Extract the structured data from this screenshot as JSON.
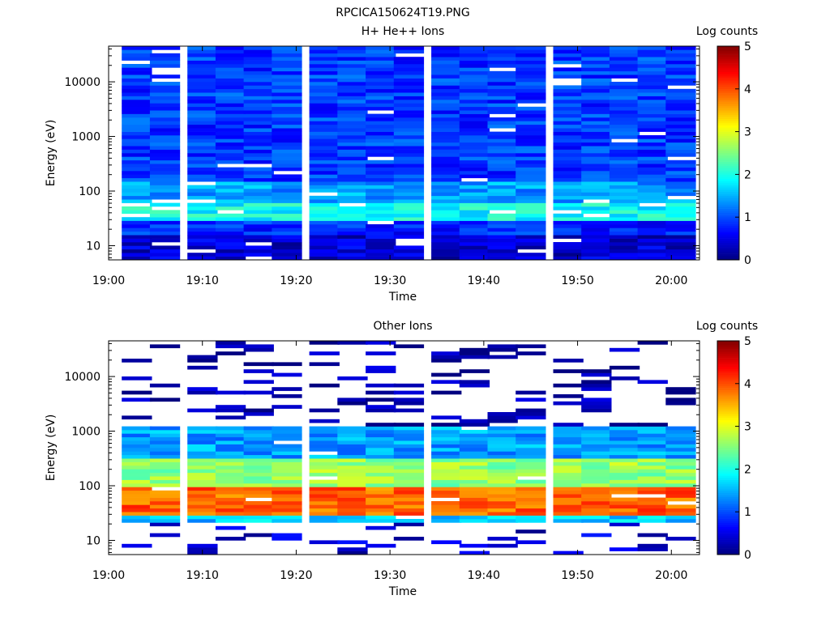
{
  "figure_title": "RPCICA150624T19.PNG",
  "chart_data": [
    {
      "type": "heatmap",
      "title": "H+ He++ Ions",
      "xlabel": "Time",
      "ylabel": "Energy (eV)",
      "x_ticks": [
        "19:00",
        "19:10",
        "19:20",
        "19:30",
        "19:40",
        "19:50",
        "20:00"
      ],
      "x_range": [
        "19:00",
        "20:03"
      ],
      "y_scale": "log",
      "y_ticks": [
        "10",
        "100",
        "1000",
        "10000"
      ],
      "y_range_eV": [
        5.5,
        45000
      ],
      "colorbar": {
        "label": "Log counts",
        "ticks": [
          "0",
          "1",
          "2",
          "3",
          "4",
          "5"
        ],
        "range": [
          0,
          5
        ],
        "colormap": "jet"
      },
      "time_bins": [
        "19:03",
        "19:06",
        "19:10",
        "19:13",
        "19:16",
        "19:19",
        "19:23",
        "19:26",
        "19:29",
        "19:32",
        "19:36",
        "19:39",
        "19:42",
        "19:45",
        "19:49",
        "19:52",
        "19:55",
        "19:58",
        "20:01"
      ],
      "energy_profile_log_counts": [
        {
          "min_eV": 5.5,
          "max_eV": 15,
          "value": 0.4
        },
        {
          "min_eV": 15,
          "max_eV": 30,
          "value": 0.8
        },
        {
          "min_eV": 30,
          "max_eV": 60,
          "value": 1.9
        },
        {
          "min_eV": 60,
          "max_eV": 150,
          "value": 1.4
        },
        {
          "min_eV": 150,
          "max_eV": 45000,
          "value": 0.9
        }
      ]
    },
    {
      "type": "heatmap",
      "title": "Other Ions",
      "xlabel": "Time",
      "ylabel": "Energy (eV)",
      "x_ticks": [
        "19:00",
        "19:10",
        "19:20",
        "19:30",
        "19:40",
        "19:50",
        "20:00"
      ],
      "x_range": [
        "19:00",
        "20:03"
      ],
      "y_scale": "log",
      "y_ticks": [
        "10",
        "100",
        "1000",
        "10000"
      ],
      "y_range_eV": [
        5.5,
        45000
      ],
      "colorbar": {
        "label": "Log counts",
        "ticks": [
          "0",
          "1",
          "2",
          "3",
          "4",
          "5"
        ],
        "range": [
          0,
          5
        ],
        "colormap": "jet"
      },
      "time_bins": [
        "19:03",
        "19:06",
        "19:10",
        "19:13",
        "19:16",
        "19:19",
        "19:23",
        "19:26",
        "19:29",
        "19:32",
        "19:36",
        "19:39",
        "19:42",
        "19:45",
        "19:49",
        "19:52",
        "19:55",
        "19:58",
        "20:01"
      ],
      "energy_profile_log_counts": [
        {
          "min_eV": 5.5,
          "max_eV": 20,
          "value": 0.4
        },
        {
          "min_eV": 20,
          "max_eV": 30,
          "value": 1.6
        },
        {
          "min_eV": 30,
          "max_eV": 90,
          "value": 3.9
        },
        {
          "min_eV": 90,
          "max_eV": 300,
          "value": 2.6
        },
        {
          "min_eV": 300,
          "max_eV": 1200,
          "value": 1.4
        },
        {
          "min_eV": 1200,
          "max_eV": 45000,
          "value": 0.2
        }
      ]
    }
  ]
}
